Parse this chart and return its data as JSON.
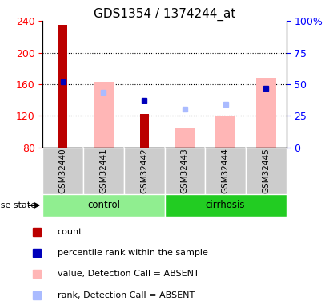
{
  "title": "GDS1354 / 1374244_at",
  "samples": [
    "GSM32440",
    "GSM32441",
    "GSM32442",
    "GSM32443",
    "GSM32444",
    "GSM32445"
  ],
  "ylim_left": [
    80,
    240
  ],
  "ylim_right": [
    0,
    100
  ],
  "yticks_left": [
    80,
    120,
    160,
    200,
    240
  ],
  "yticks_right": [
    0,
    25,
    50,
    75,
    100
  ],
  "ytick_labels_right": [
    "0",
    "25",
    "50",
    "75",
    "100%"
  ],
  "bar_color_dark": "#BB0000",
  "bar_color_light": "#FFB6B6",
  "dot_color_dark": "#0000BB",
  "dot_color_light": "#AABBFF",
  "red_bars": {
    "GSM32440": 235,
    "GSM32441": null,
    "GSM32442": 122,
    "GSM32443": null,
    "GSM32444": null,
    "GSM32445": null
  },
  "pink_bars": {
    "GSM32440": null,
    "GSM32441": 163,
    "GSM32442": null,
    "GSM32443": 105,
    "GSM32444": 120,
    "GSM32445": 168
  },
  "blue_dots": {
    "GSM32440": 163,
    "GSM32441": null,
    "GSM32442": 140,
    "GSM32443": null,
    "GSM32444": null,
    "GSM32445": 155
  },
  "light_blue_dots": {
    "GSM32440": null,
    "GSM32441": 150,
    "GSM32442": null,
    "GSM32443": 129,
    "GSM32444": 135,
    "GSM32445": null
  },
  "legend_items": [
    {
      "color": "#BB0000",
      "label": "count"
    },
    {
      "color": "#0000BB",
      "label": "percentile rank within the sample"
    },
    {
      "color": "#FFB6B6",
      "label": "value, Detection Call = ABSENT"
    },
    {
      "color": "#AABBFF",
      "label": "rank, Detection Call = ABSENT"
    }
  ],
  "group_control_color": "#90EE90",
  "group_cirrhosis_color": "#22CC22",
  "sample_label_bg": "#CCCCCC",
  "disease_state_label": "disease state",
  "background_color": "#FFFFFF",
  "title_fontsize": 11,
  "tick_fontsize": 9,
  "legend_fontsize": 8,
  "sample_fontsize": 7.5
}
